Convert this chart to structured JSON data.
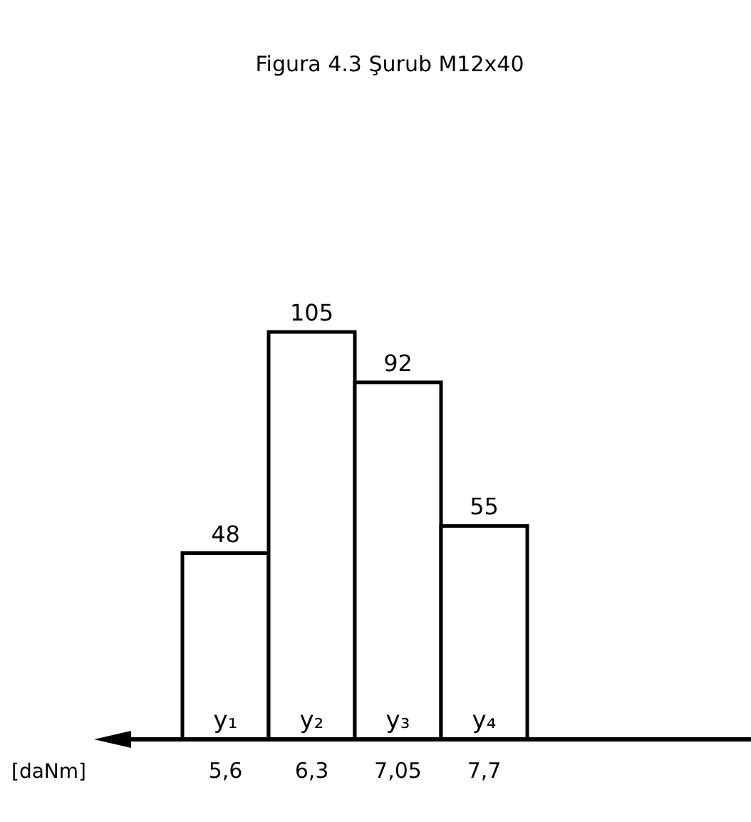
{
  "chart_data": {
    "type": "bar",
    "title": "Figura 4.3 Şurub M12x40",
    "xlabel": "[daNm]",
    "categories": [
      "5,6",
      "6,3",
      "7,05",
      "7,7"
    ],
    "values": [
      48,
      105,
      92,
      55
    ],
    "color": "#ffffff",
    "data_labels": true,
    "annotations": [
      "y₁",
      "y₂",
      "y₃",
      "y₄"
    ]
  }
}
